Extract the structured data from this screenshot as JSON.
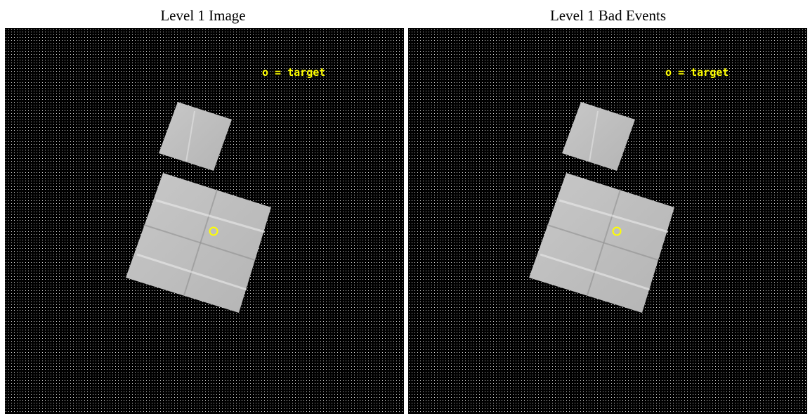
{
  "panels": [
    {
      "title": "Level 1 Image",
      "legend": "o = target"
    },
    {
      "title": "Level 1 Bad Events",
      "legend": "o = target"
    }
  ],
  "colors": {
    "background": "#000000",
    "noise_dots": "#ffffff",
    "detector": "#c4c4c4",
    "target": "#ffff00"
  },
  "icons": {
    "target_marker": "circle-icon"
  }
}
